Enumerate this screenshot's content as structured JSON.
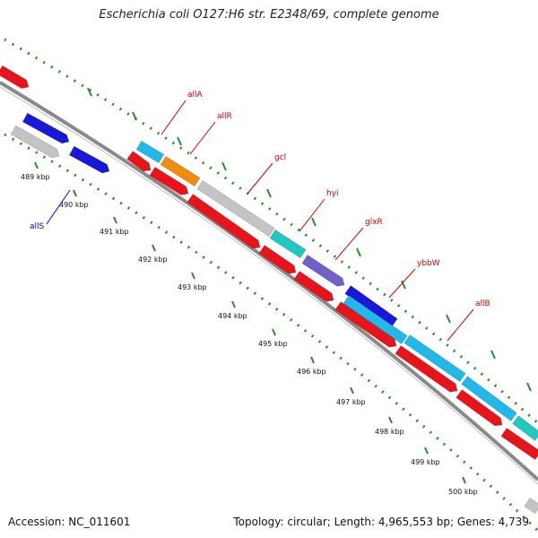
{
  "title": "Escherichia coli O127:H6 str. E2348/69, complete genome",
  "footer": {
    "accession": "Accession: NC_011601",
    "summary": "Topology: circular; Length: 4,965,553 bp; Genes: 4,739"
  },
  "ticks": [
    {
      "label": "489 kbp"
    },
    {
      "label": "490 kbp"
    },
    {
      "label": "491 kbp"
    },
    {
      "label": "492 kbp"
    },
    {
      "label": "493 kbp"
    },
    {
      "label": "494 kbp"
    },
    {
      "label": "495 kbp"
    },
    {
      "label": "496 kbp"
    },
    {
      "label": "497 kbp"
    },
    {
      "label": "498 kbp"
    },
    {
      "label": "499 kbp"
    },
    {
      "label": "500 kbp"
    }
  ],
  "gene_labels": [
    {
      "text": "allA",
      "color": "#cc0000"
    },
    {
      "text": "allR",
      "color": "#cc0000"
    },
    {
      "text": "gcl",
      "color": "#cc0000"
    },
    {
      "text": "hyi",
      "color": "#cc0000"
    },
    {
      "text": "glxR",
      "color": "#cc0000"
    },
    {
      "text": "ybbW",
      "color": "#cc0000"
    },
    {
      "text": "allB",
      "color": "#cc0000"
    },
    {
      "text": "allS",
      "color": "#0000cc"
    }
  ],
  "colors": {
    "cds": "#e8141c",
    "gene_light_blue": "#22b8e8",
    "gene_teal": "#20c8c0",
    "gene_orange": "#f08c10",
    "gene_gray": "#c4c4c4",
    "gene_purple": "#7060c8",
    "gene_blue": "#1818d8",
    "backbone": "#8a8a8a",
    "ruler": "#2a8a2a"
  }
}
